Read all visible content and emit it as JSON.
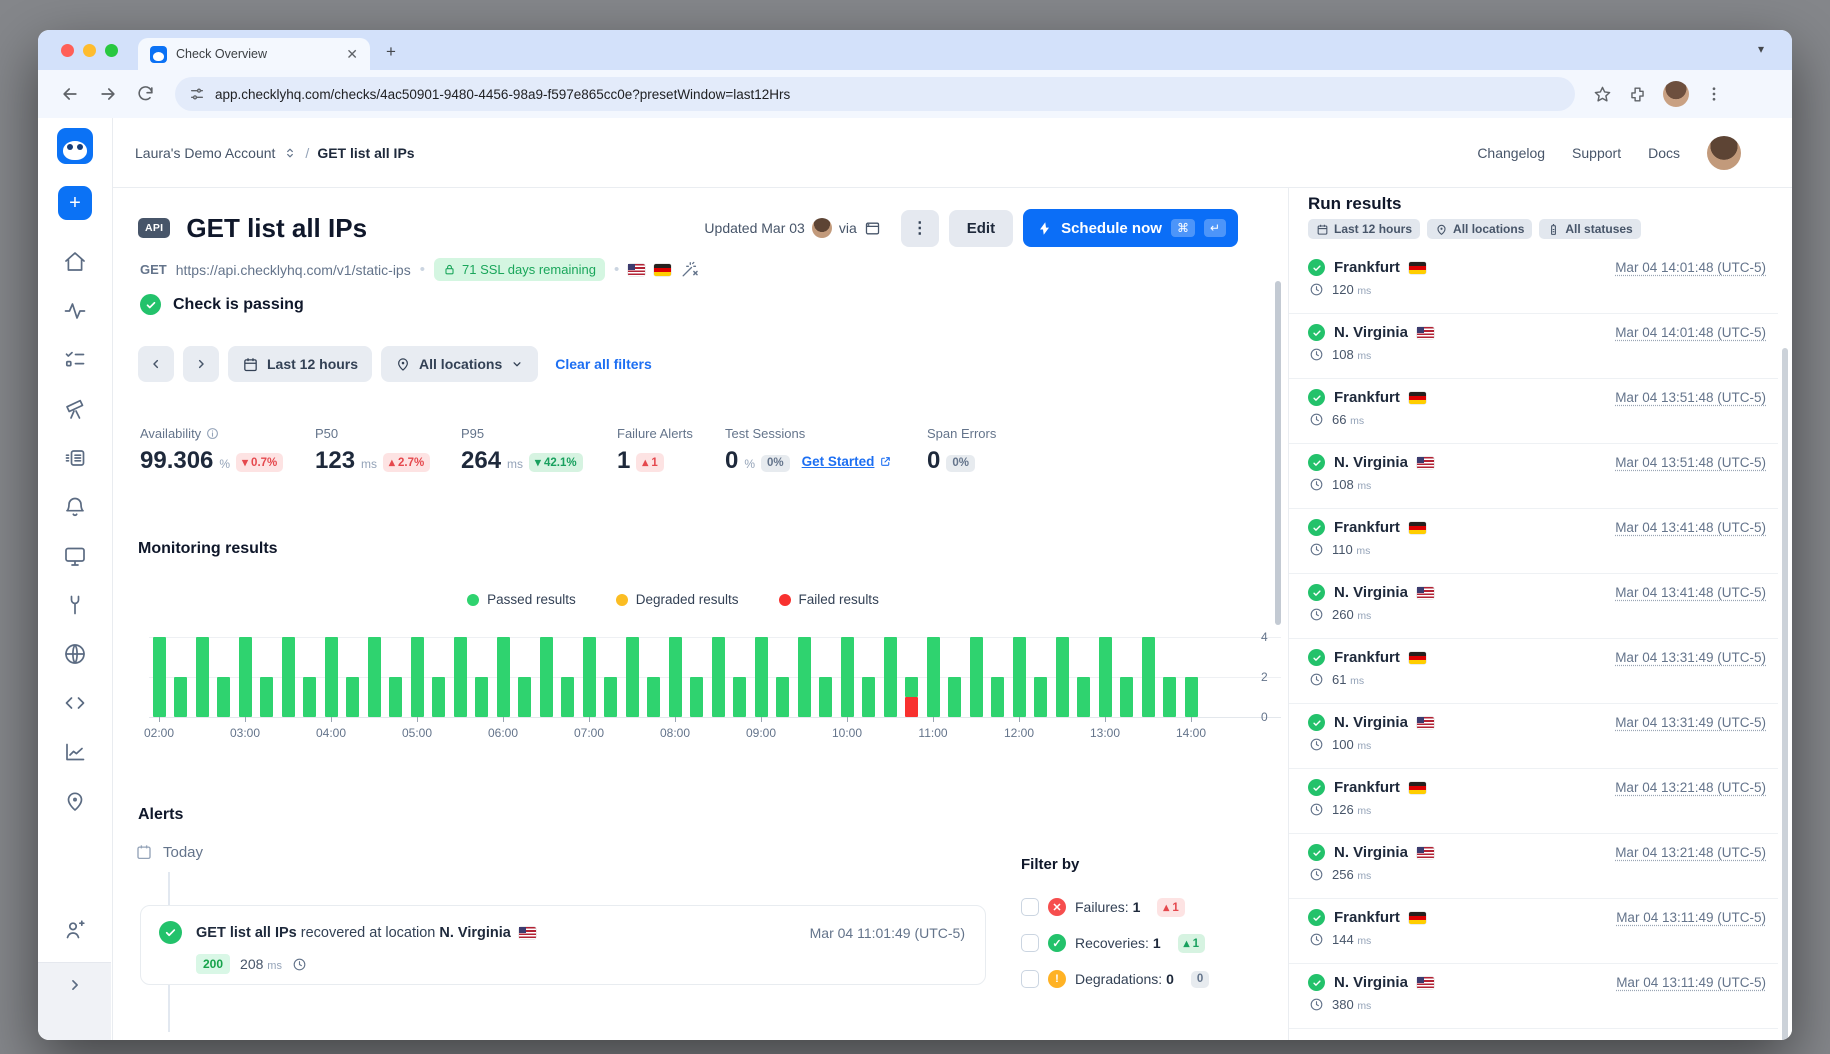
{
  "browser": {
    "tab_title": "Check Overview",
    "url": "app.checklyhq.com/checks/4ac50901-9480-4456-98a9-f597e865cc0e?presetWindow=last12Hrs"
  },
  "header": {
    "account": "Laura's Demo Account",
    "separator": "/",
    "page": "GET list all IPs",
    "links": {
      "changelog": "Changelog",
      "support": "Support",
      "docs": "Docs"
    }
  },
  "check": {
    "method_badge": "API",
    "title": "GET list all IPs",
    "updated": "Updated Mar 03",
    "via": "via",
    "edit_label": "Edit",
    "schedule_label": "Schedule now",
    "schedule_keys": [
      "⌘",
      "↵"
    ],
    "request_method": "GET",
    "request_url": "https://api.checklyhq.com/v1/static-ips",
    "ssl_badge": "71 SSL days remaining",
    "status": "Check is passing"
  },
  "filters": {
    "time_range": "Last 12 hours",
    "locations": "All locations",
    "clear": "Clear all filters"
  },
  "stats": [
    {
      "label": "Availability",
      "value": "99.306",
      "unit": "%",
      "badge": "▾ 0.7%",
      "badge_type": "red"
    },
    {
      "label": "P50",
      "value": "123",
      "unit": "ms",
      "badge": "▴ 2.7%",
      "badge_type": "red"
    },
    {
      "label": "P95",
      "value": "264",
      "unit": "ms",
      "badge": "▾ 42.1%",
      "badge_type": "green"
    },
    {
      "label": "Failure Alerts",
      "value": "1",
      "unit": "",
      "badge": "▴ 1",
      "badge_type": "red"
    },
    {
      "label": "Test Sessions",
      "value": "0",
      "unit": "%",
      "badge": "0%",
      "badge_type": "gray",
      "link": "Get Started"
    },
    {
      "label": "Span Errors",
      "value": "0",
      "unit": "",
      "badge": "0%",
      "badge_type": "gray"
    }
  ],
  "monitoring_title": "Monitoring results",
  "chart_data": {
    "type": "bar",
    "title": "Monitoring results",
    "legend": [
      "Passed results",
      "Degraded results",
      "Failed results"
    ],
    "legend_colors": [
      "#2fd36f",
      "#fbbd23",
      "#f8312f"
    ],
    "x_start": "02:00",
    "interval_minutes": 15,
    "x_ticks": [
      "02:00",
      "03:00",
      "04:00",
      "05:00",
      "06:00",
      "07:00",
      "08:00",
      "09:00",
      "10:00",
      "11:00",
      "12:00",
      "13:00",
      "14:00"
    ],
    "ylim": [
      0,
      4
    ],
    "y_ticks": [
      0,
      2,
      4
    ],
    "series": [
      {
        "name": "Passed results",
        "color": "#2fd36f",
        "values": [
          4,
          2,
          4,
          2,
          4,
          2,
          4,
          2,
          4,
          2,
          4,
          2,
          4,
          2,
          4,
          2,
          4,
          2,
          4,
          2,
          4,
          2,
          4,
          2,
          4,
          2,
          4,
          2,
          4,
          2,
          4,
          2,
          4,
          2,
          4,
          1,
          4,
          2,
          4,
          2,
          4,
          2,
          4,
          2,
          4,
          2,
          4,
          2,
          2
        ]
      },
      {
        "name": "Failed results",
        "color": "#f8312f",
        "values": [
          0,
          0,
          0,
          0,
          0,
          0,
          0,
          0,
          0,
          0,
          0,
          0,
          0,
          0,
          0,
          0,
          0,
          0,
          0,
          0,
          0,
          0,
          0,
          0,
          0,
          0,
          0,
          0,
          0,
          0,
          0,
          0,
          0,
          0,
          0,
          1,
          0,
          0,
          0,
          0,
          0,
          0,
          0,
          0,
          0,
          0,
          0,
          0,
          0
        ]
      }
    ]
  },
  "alerts": {
    "title": "Alerts",
    "group": "Today",
    "items": [
      {
        "check": "GET list all IPs",
        "text": "recovered at location",
        "location": "N. Virginia",
        "flag": "us",
        "time": "Mar 04 11:01:49 (UTC-5)",
        "status_code": "200",
        "duration": "208",
        "duration_unit": "ms"
      }
    ]
  },
  "filter_by": {
    "title": "Filter by",
    "options": [
      {
        "icon": "x-circle-icon",
        "label": "Failures:",
        "count": "1",
        "badge": "▴ 1",
        "badge_type": "red",
        "dot_color": "#f64e4e",
        "glyph": "✕"
      },
      {
        "icon": "check-circle-icon",
        "label": "Recoveries:",
        "count": "1",
        "badge": "▴ 1",
        "badge_type": "green",
        "dot_color": "#23c26b",
        "glyph": "✓"
      },
      {
        "icon": "warn-circle-icon",
        "label": "Degradations:",
        "count": "0",
        "badge": "0",
        "badge_type": "gray",
        "dot_color": "#ffb224",
        "glyph": "!"
      }
    ]
  },
  "run_results": {
    "title": "Run results",
    "pills": [
      {
        "icon": "calendar-icon",
        "label": "Last 12 hours"
      },
      {
        "icon": "location-pin-icon",
        "label": "All locations"
      },
      {
        "icon": "battery-icon",
        "label": "All statuses"
      }
    ],
    "duration_unit": "ms",
    "items": [
      {
        "location": "Frankfurt",
        "flag": "de",
        "duration": "120",
        "time": "Mar 04 14:01:48 (UTC-5)"
      },
      {
        "location": "N. Virginia",
        "flag": "us",
        "duration": "108",
        "time": "Mar 04 14:01:48 (UTC-5)"
      },
      {
        "location": "Frankfurt",
        "flag": "de",
        "duration": "66",
        "time": "Mar 04 13:51:48 (UTC-5)"
      },
      {
        "location": "N. Virginia",
        "flag": "us",
        "duration": "108",
        "time": "Mar 04 13:51:48 (UTC-5)"
      },
      {
        "location": "Frankfurt",
        "flag": "de",
        "duration": "110",
        "time": "Mar 04 13:41:48 (UTC-5)"
      },
      {
        "location": "N. Virginia",
        "flag": "us",
        "duration": "260",
        "time": "Mar 04 13:41:48 (UTC-5)"
      },
      {
        "location": "Frankfurt",
        "flag": "de",
        "duration": "61",
        "time": "Mar 04 13:31:49 (UTC-5)"
      },
      {
        "location": "N. Virginia",
        "flag": "us",
        "duration": "100",
        "time": "Mar 04 13:31:49 (UTC-5)"
      },
      {
        "location": "Frankfurt",
        "flag": "de",
        "duration": "126",
        "time": "Mar 04 13:21:48 (UTC-5)"
      },
      {
        "location": "N. Virginia",
        "flag": "us",
        "duration": "256",
        "time": "Mar 04 13:21:48 (UTC-5)"
      },
      {
        "location": "Frankfurt",
        "flag": "de",
        "duration": "144",
        "time": "Mar 04 13:11:49 (UTC-5)"
      },
      {
        "location": "N. Virginia",
        "flag": "us",
        "duration": "380",
        "time": "Mar 04 13:11:49 (UTC-5)"
      }
    ]
  },
  "colors": {
    "accent_blue": "#0b6ef7",
    "green": "#23c26b",
    "red": "#f8312f",
    "yellow": "#fbbd23"
  }
}
